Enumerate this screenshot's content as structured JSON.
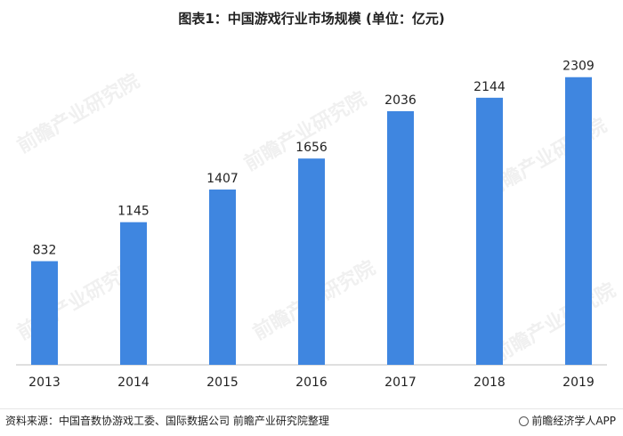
{
  "title": "图表1：中国游戏行业市场规模 (单位：亿元)",
  "watermark_text": "前瞻产业研究院",
  "colors": {
    "bar": "#3F86E0",
    "axis": "#bfbfbf",
    "text": "#222222"
  },
  "chart_data": {
    "type": "bar",
    "title": "图表1：中国游戏行业市场规模 (单位：亿元)",
    "xlabel": "",
    "ylabel": "",
    "categories": [
      "2013",
      "2014",
      "2015",
      "2016",
      "2017",
      "2018",
      "2019"
    ],
    "values": [
      832,
      1145,
      1407,
      1656,
      2036,
      2144,
      2309
    ],
    "ylim": [
      0,
      2500
    ],
    "grid": false,
    "legend": "none"
  },
  "footer": {
    "source": "资料来源：中国音数协游戏工委、国际数据公司 前瞻产业研究院整理",
    "brand": "前瞻经济学人APP",
    "brand_icon": "qianzhan-logo-icon"
  }
}
